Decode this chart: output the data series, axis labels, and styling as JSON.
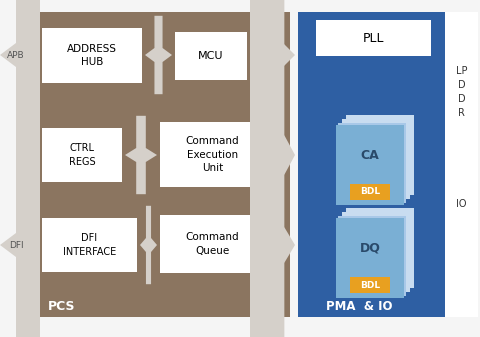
{
  "fig_width": 4.8,
  "fig_height": 3.37,
  "dpi": 100,
  "bg_color": "#f5f5f5",
  "pcs_bg": "#8B7560",
  "pma_bg": "#2E5FA3",
  "io_bg": "#ffffff",
  "white_box": "#ffffff",
  "light_blue1": "#C8DCF0",
  "light_blue2": "#A8C8E8",
  "light_blue3": "#7AAFD4",
  "bdl_color": "#E8A020",
  "pcs_label": "PCS",
  "pma_label": "PMA  & IO",
  "apb_label": "APB",
  "dfi_label": "DFI",
  "pll_label": "PLL",
  "addr_hub_label": "ADDRESS\nHUB",
  "mcu_label": "MCU",
  "ctrl_regs_label": "CTRL\nREGS",
  "cmd_exec_label": "Command\nExecution\nUnit",
  "dfi_iface_label": "DFI\nINTERFACE",
  "cmd_queue_label": "Command\nQueue",
  "ca_label": "CA",
  "dq_label": "DQ",
  "bdl_label": "BDL",
  "arrow_color": "#d5d0ca"
}
